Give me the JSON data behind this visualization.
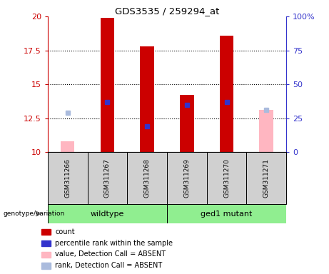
{
  "title": "GDS3535 / 259294_at",
  "samples": [
    "GSM311266",
    "GSM311267",
    "GSM311268",
    "GSM311269",
    "GSM311270",
    "GSM311271"
  ],
  "ylim_left": [
    10,
    20
  ],
  "ylim_right": [
    0,
    100
  ],
  "yticks_left": [
    10,
    12.5,
    15,
    17.5,
    20
  ],
  "yticks_right": [
    0,
    25,
    50,
    75,
    100
  ],
  "ytick_labels_right": [
    "0",
    "25",
    "50",
    "75",
    "100%"
  ],
  "count_values": [
    null,
    19.9,
    17.8,
    14.2,
    18.6,
    null
  ],
  "percentile_rank": [
    null,
    13.7,
    11.9,
    13.5,
    13.7,
    null
  ],
  "absent_value": [
    10.8,
    null,
    null,
    null,
    null,
    13.1
  ],
  "absent_rank": [
    12.9,
    null,
    null,
    null,
    null,
    13.1
  ],
  "bar_width": 0.35,
  "count_color": "#cc0000",
  "percentile_color": "#3333cc",
  "absent_value_color": "#ffb6c1",
  "absent_rank_color": "#aabbdd",
  "left_tick_color": "#cc0000",
  "right_tick_color": "#3333cc",
  "wildtype_color": "#90ee90",
  "mutant_color": "#90ee90",
  "sample_box_color": "#d0d0d0",
  "legend_items": [
    {
      "label": "count",
      "color": "#cc0000"
    },
    {
      "label": "percentile rank within the sample",
      "color": "#3333cc"
    },
    {
      "label": "value, Detection Call = ABSENT",
      "color": "#ffb6c1"
    },
    {
      "label": "rank, Detection Call = ABSENT",
      "color": "#aabbdd"
    }
  ]
}
